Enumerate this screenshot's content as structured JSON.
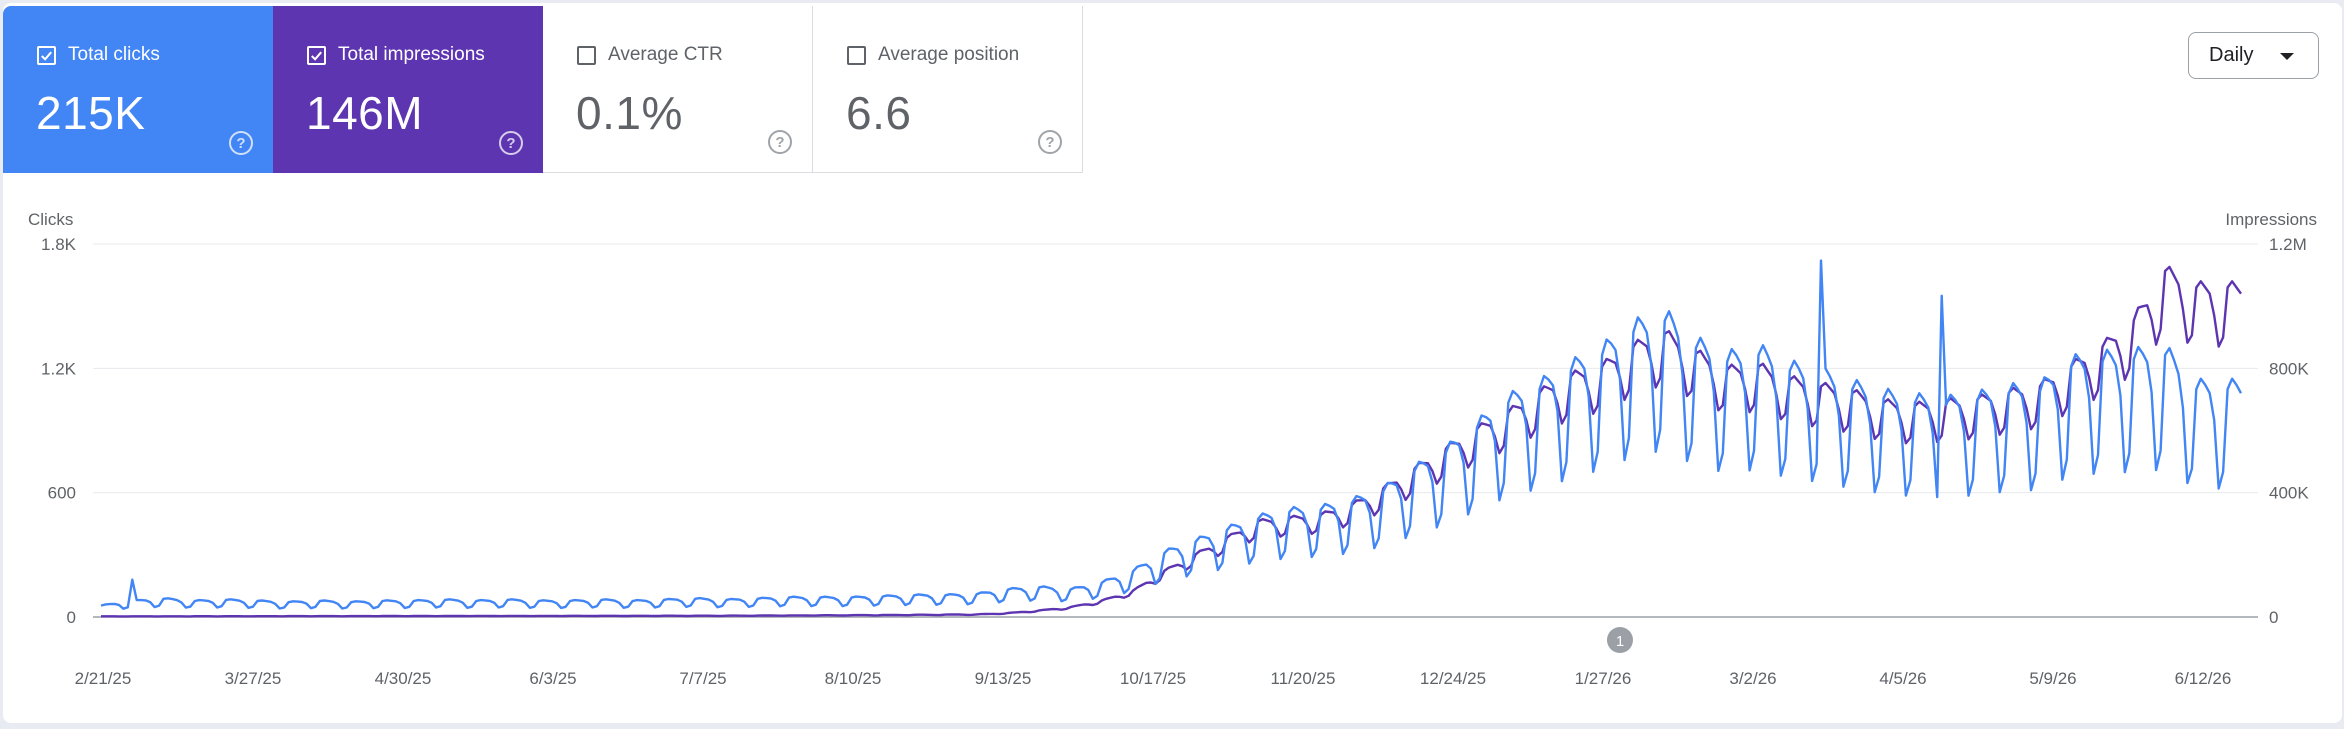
{
  "metrics": [
    {
      "label": "Total clicks",
      "value": "215K",
      "checked": true,
      "color": "#4285f4"
    },
    {
      "label": "Total impressions",
      "value": "146M",
      "checked": true,
      "color": "#5e35b1"
    },
    {
      "label": "Average CTR",
      "value": "0.1%",
      "checked": false
    },
    {
      "label": "Average position",
      "value": "6.6",
      "checked": false
    }
  ],
  "help_icon": "?",
  "granularity": {
    "selected": "Daily",
    "icon": "dropdown-caret-icon"
  },
  "chart_data": {
    "type": "line",
    "left_axis": {
      "label": "Clicks",
      "ticks": [
        "1.8K",
        "1.2K",
        "600",
        "0"
      ],
      "ylim": [
        0,
        1800
      ]
    },
    "right_axis": {
      "label": "Impressions",
      "ticks": [
        "1.2M",
        "800K",
        "400K",
        "0"
      ],
      "ylim": [
        0,
        1200000
      ]
    },
    "x_ticks": [
      "2/21/25",
      "3/27/25",
      "4/30/25",
      "6/3/25",
      "7/7/25",
      "8/10/25",
      "9/13/25",
      "10/17/25",
      "11/20/25",
      "12/24/25",
      "1/27/26",
      "3/2/26",
      "4/5/26",
      "5/9/26",
      "6/12/26"
    ],
    "annotation": {
      "label": "1",
      "date_index": 340
    },
    "series": [
      {
        "name": "Clicks",
        "axis": "left",
        "color": "#4285f4",
        "weekly_points": [
          [
            0,
            50
          ],
          [
            7,
            70
          ],
          [
            14,
            80
          ],
          [
            21,
            70
          ],
          [
            28,
            75
          ],
          [
            35,
            70
          ],
          [
            42,
            65
          ],
          [
            49,
            70
          ],
          [
            56,
            65
          ],
          [
            63,
            70
          ],
          [
            70,
            70
          ],
          [
            77,
            75
          ],
          [
            84,
            70
          ],
          [
            91,
            75
          ],
          [
            98,
            70
          ],
          [
            105,
            70
          ],
          [
            112,
            75
          ],
          [
            119,
            70
          ],
          [
            126,
            75
          ],
          [
            133,
            80
          ],
          [
            140,
            75
          ],
          [
            147,
            80
          ],
          [
            154,
            85
          ],
          [
            161,
            85
          ],
          [
            168,
            85
          ],
          [
            175,
            90
          ],
          [
            182,
            95
          ],
          [
            189,
            95
          ],
          [
            196,
            100
          ],
          [
            203,
            120
          ],
          [
            210,
            130
          ],
          [
            217,
            120
          ],
          [
            224,
            150
          ],
          [
            231,
            200
          ],
          [
            238,
            280
          ],
          [
            245,
            330
          ],
          [
            252,
            380
          ],
          [
            259,
            430
          ],
          [
            266,
            460
          ],
          [
            273,
            470
          ],
          [
            280,
            500
          ],
          [
            287,
            550
          ],
          [
            294,
            640
          ],
          [
            301,
            720
          ],
          [
            308,
            830
          ],
          [
            315,
            940
          ],
          [
            322,
            1000
          ],
          [
            329,
            1080
          ],
          [
            336,
            1150
          ],
          [
            343,
            1250
          ],
          [
            350,
            1300
          ],
          [
            357,
            1180
          ],
          [
            364,
            1120
          ],
          [
            371,
            1150
          ],
          [
            378,
            1080
          ],
          [
            385,
            1050
          ],
          [
            392,
            1000
          ],
          [
            399,
            960
          ],
          [
            406,
            940
          ],
          [
            413,
            930
          ],
          [
            420,
            950
          ],
          [
            427,
            980
          ],
          [
            434,
            990
          ],
          [
            441,
            1100
          ],
          [
            448,
            1120
          ],
          [
            455,
            1130
          ],
          [
            462,
            1150
          ],
          [
            469,
            1000
          ]
        ],
        "weekday_pattern": [
          1.1,
          1.15,
          1.12,
          1.08,
          0.95,
          0.62,
          0.7
        ],
        "spikes": [
          {
            "date_index": 7,
            "value": 180
          },
          {
            "date_index": 385,
            "value": 1720
          },
          {
            "date_index": 412,
            "value": 1550
          }
        ]
      },
      {
        "name": "Impressions",
        "axis": "right",
        "color": "#5e35b1",
        "weekly_points": [
          [
            0,
            2000
          ],
          [
            70,
            3000
          ],
          [
            140,
            4000
          ],
          [
            175,
            6000
          ],
          [
            196,
            8000
          ],
          [
            203,
            12000
          ],
          [
            210,
            20000
          ],
          [
            217,
            30000
          ],
          [
            224,
            50000
          ],
          [
            231,
            80000
          ],
          [
            238,
            140000
          ],
          [
            245,
            190000
          ],
          [
            252,
            240000
          ],
          [
            259,
            290000
          ],
          [
            266,
            300000
          ],
          [
            273,
            310000
          ],
          [
            280,
            340000
          ],
          [
            287,
            390000
          ],
          [
            294,
            450000
          ],
          [
            301,
            510000
          ],
          [
            308,
            570000
          ],
          [
            315,
            620000
          ],
          [
            322,
            680000
          ],
          [
            329,
            730000
          ],
          [
            336,
            760000
          ],
          [
            343,
            820000
          ],
          [
            350,
            860000
          ],
          [
            357,
            800000
          ],
          [
            364,
            750000
          ],
          [
            371,
            760000
          ],
          [
            378,
            720000
          ],
          [
            385,
            700000
          ],
          [
            392,
            680000
          ],
          [
            399,
            650000
          ],
          [
            406,
            640000
          ],
          [
            413,
            650000
          ],
          [
            420,
            660000
          ],
          [
            427,
            680000
          ],
          [
            434,
            700000
          ],
          [
            441,
            760000
          ],
          [
            448,
            820000
          ],
          [
            455,
            900000
          ],
          [
            462,
            1050000
          ],
          [
            469,
            1000000
          ]
        ],
        "weekday_pattern": [
          1.06,
          1.08,
          1.06,
          1.04,
          0.97,
          0.87,
          0.9
        ],
        "spikes": []
      }
    ]
  }
}
